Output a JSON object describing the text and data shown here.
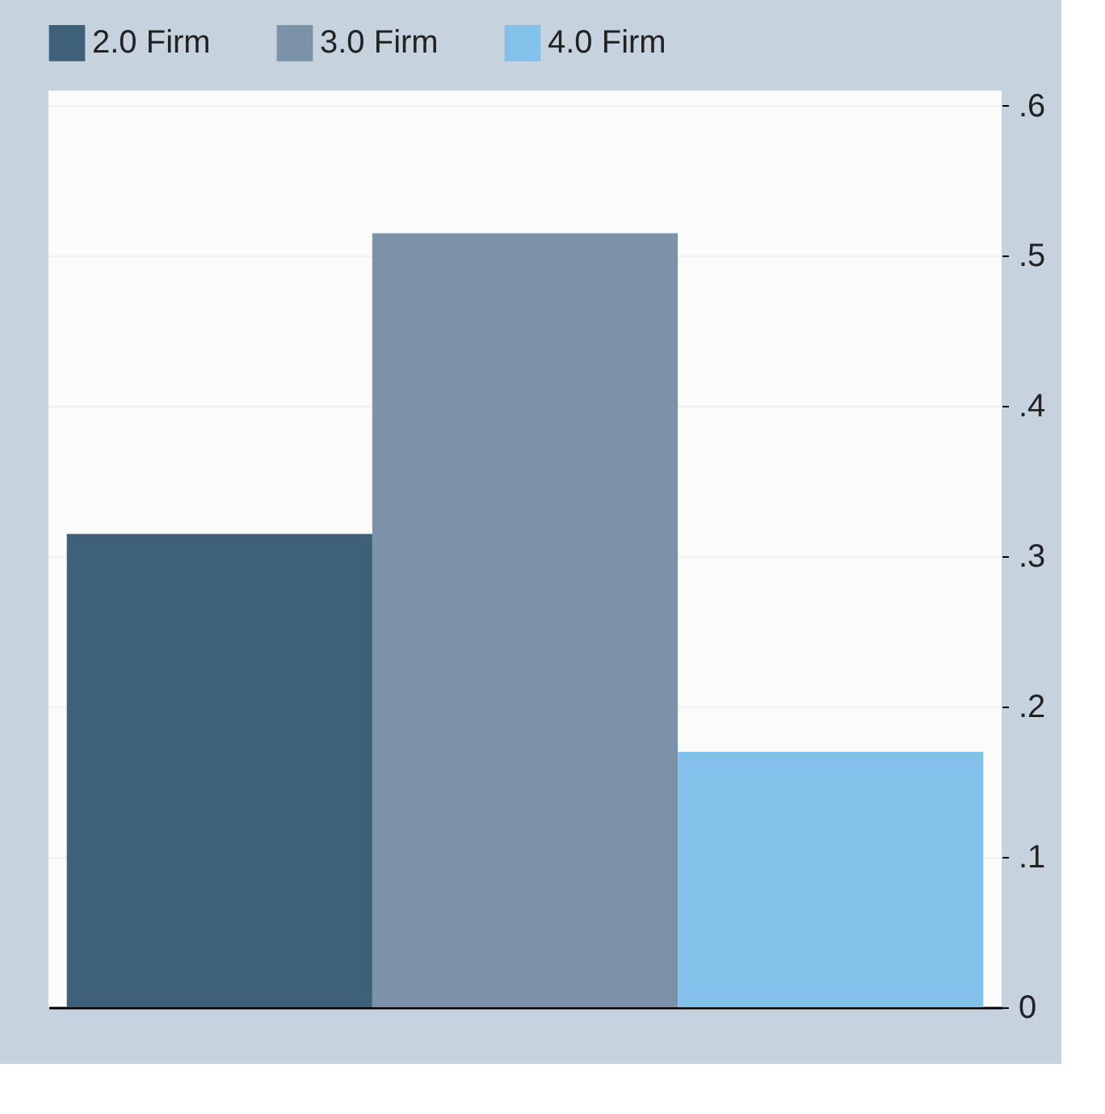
{
  "chart_data": {
    "type": "bar",
    "categories": [
      null
    ],
    "series": [
      {
        "name": "2.0 Firm",
        "color": "#3e6079",
        "values": [
          0.315
        ]
      },
      {
        "name": "3.0 Firm",
        "color": "#7b92a9",
        "values": [
          0.515
        ]
      },
      {
        "name": "4.0 Firm",
        "color": "#83c0ea",
        "values": [
          0.17
        ]
      }
    ],
    "ylim": [
      0,
      0.61
    ],
    "yticks": [
      {
        "value": 0,
        "label": "0"
      },
      {
        "value": 0.1,
        "label": ".1"
      },
      {
        "value": 0.2,
        "label": ".2"
      },
      {
        "value": 0.3,
        "label": ".3"
      },
      {
        "value": 0.4,
        "label": ".4"
      },
      {
        "value": 0.5,
        "label": ".5"
      },
      {
        "value": 0.6,
        "label": ".6"
      }
    ],
    "grid": "y",
    "legend": "top",
    "tick_labels": "y"
  }
}
